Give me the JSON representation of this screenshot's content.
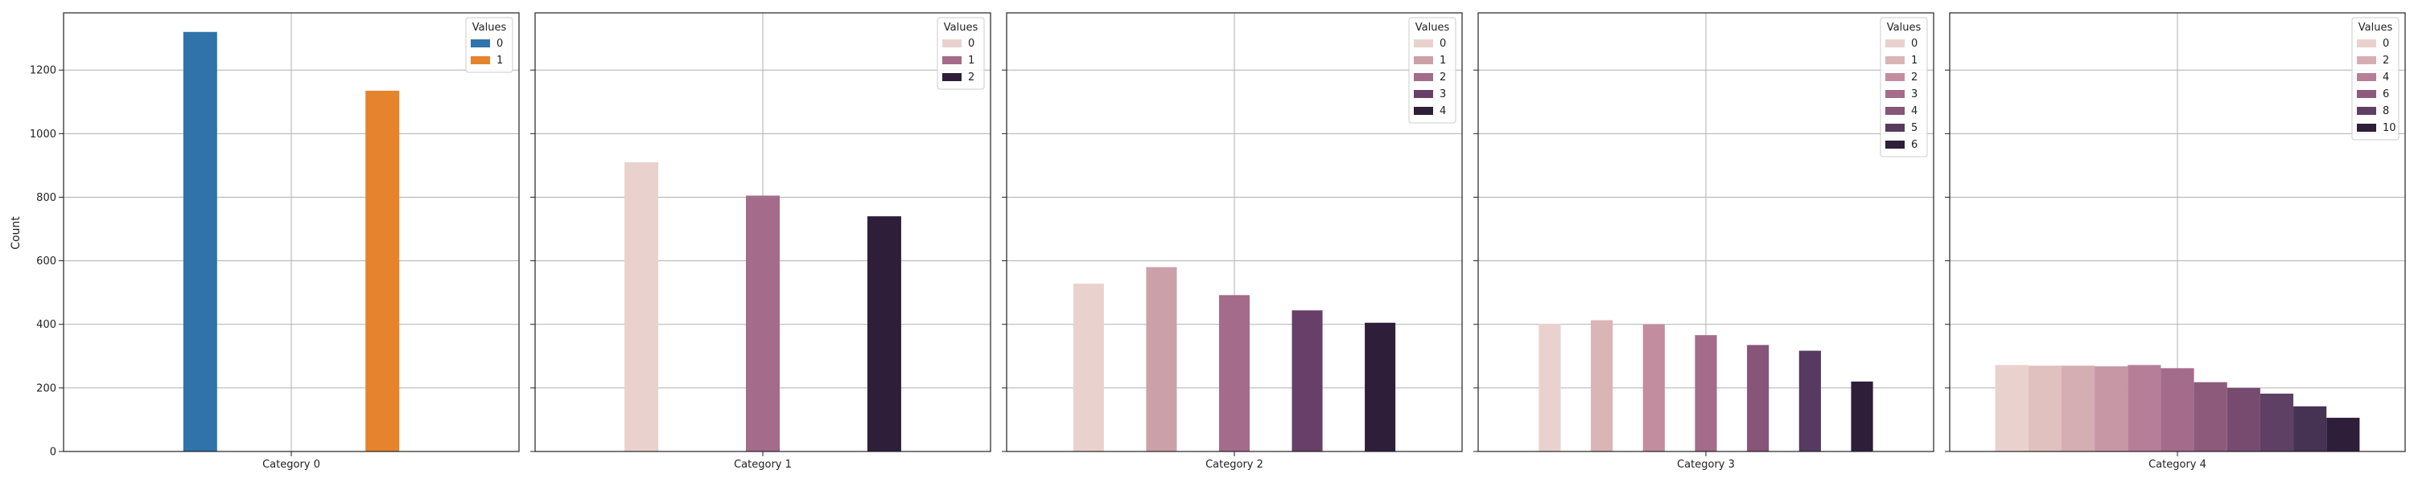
{
  "chart_data": {
    "type": "bar",
    "ylabel": "Count",
    "ylim": [
      0,
      1380
    ],
    "yticks": [
      0,
      200,
      400,
      600,
      800,
      1000,
      1200
    ],
    "grid": true,
    "legend_title": "Values",
    "legend_placement": "top-right",
    "panels": [
      {
        "category": "Category 0",
        "values": [
          1320,
          1135
        ],
        "hue_levels": [
          "0",
          "1"
        ],
        "legend_labels": [
          "0",
          "1"
        ],
        "colors": [
          "#2f73aa",
          "#e6832d"
        ]
      },
      {
        "category": "Category 1",
        "values": [
          910,
          805,
          740
        ],
        "hue_levels": [
          "0",
          "1",
          "2"
        ],
        "legend_labels": [
          "0",
          "1",
          "2"
        ],
        "colors": [
          "#e9d2cd",
          "#a46b8b",
          "#2e1e3a"
        ]
      },
      {
        "category": "Category 2",
        "values": [
          528,
          580,
          492,
          444,
          405
        ],
        "hue_levels": [
          "0",
          "1",
          "2",
          "3",
          "4"
        ],
        "legend_labels": [
          "0",
          "1",
          "2",
          "3",
          "4"
        ],
        "colors": [
          "#e9d2cd",
          "#cca0a8",
          "#a46b8b",
          "#683f68",
          "#2e1e3a"
        ]
      },
      {
        "category": "Category 3",
        "values": [
          402,
          413,
          400,
          366,
          335,
          317,
          220
        ],
        "hue_levels": [
          "0",
          "1",
          "2",
          "3",
          "4",
          "5",
          "6"
        ],
        "legend_labels": [
          "0",
          "1",
          "2",
          "3",
          "4",
          "5",
          "6"
        ],
        "colors": [
          "#e9d2cd",
          "#d9b5b5",
          "#c38d9f",
          "#a46b8b",
          "#865578",
          "#563a60",
          "#2e1e3a"
        ]
      },
      {
        "category": "Category 4",
        "values": [
          272,
          270,
          270,
          268,
          272,
          262,
          218,
          200,
          182,
          142,
          106
        ],
        "hue_levels": [
          "0",
          "1",
          "2",
          "3",
          "4",
          "5",
          "6",
          "7",
          "8",
          "9",
          "10"
        ],
        "legend_labels": [
          "0",
          "2",
          "4",
          "6",
          "8",
          "10"
        ],
        "legend_colors": [
          "#e9d2cd",
          "#d5aeb3",
          "#b77f97",
          "#8e5a7c",
          "#5f4065",
          "#2e1e3a"
        ],
        "colors": [
          "#e9d2cd",
          "#e0c1c0",
          "#d5aeb3",
          "#c897a6",
          "#b77f97",
          "#a46b8b",
          "#8e5a7c",
          "#774b70",
          "#5f4065",
          "#463253",
          "#2e1e3a"
        ]
      }
    ]
  }
}
